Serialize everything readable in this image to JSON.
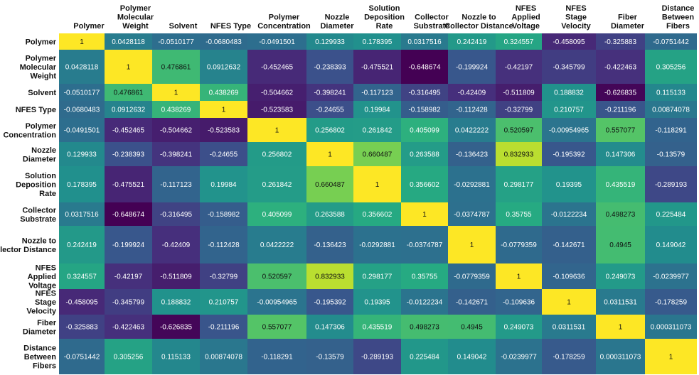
{
  "chart_data": {
    "type": "heatmap",
    "colormap": "viridis",
    "vmin": -0.648674,
    "vmax": 1,
    "labels": [
      "Polymer",
      "Polymer Molecular Weight",
      "Solvent",
      "NFES Type",
      "Polymer Concentration",
      "Nozzle Diameter",
      "Solution Deposition Rate",
      "Collector Substrate",
      "Nozzle to Collector Distance",
      "NFES Applied Voltage",
      "NFES Stage Velocity",
      "Fiber Diameter",
      "Distance Between Fibers"
    ],
    "values": [
      [
        "1",
        "0.0428118",
        "-0.0510177",
        "-0.0680483",
        "-0.0491501",
        "0.129933",
        "0.178395",
        "0.0317516",
        "0.242419",
        "0.324557",
        "-0.458095",
        "-0.325883",
        "-0.0751442"
      ],
      [
        "0.0428118",
        "1",
        "0.476861",
        "0.0912632",
        "-0.452465",
        "-0.238393",
        "-0.475521",
        "-0.648674",
        "-0.199924",
        "-0.42197",
        "-0.345799",
        "-0.422463",
        "0.305256"
      ],
      [
        "-0.0510177",
        "0.476861",
        "1",
        "0.438269",
        "-0.504662",
        "-0.398241",
        "-0.117123",
        "-0.316495",
        "-0.42409",
        "-0.511809",
        "0.188832",
        "-0.626835",
        "0.115133"
      ],
      [
        "-0.0680483",
        "0.0912632",
        "0.438269",
        "1",
        "-0.523583",
        "-0.24655",
        "0.19984",
        "-0.158982",
        "-0.112428",
        "-0.32799",
        "0.210757",
        "-0.211196",
        "0.00874078"
      ],
      [
        "-0.0491501",
        "-0.452465",
        "-0.504662",
        "-0.523583",
        "1",
        "0.256802",
        "0.261842",
        "0.405099",
        "0.0422222",
        "0.520597",
        "-0.00954965",
        "0.557077",
        "-0.118291"
      ],
      [
        "0.129933",
        "-0.238393",
        "-0.398241",
        "-0.24655",
        "0.256802",
        "1",
        "0.660487",
        "0.263588",
        "-0.136423",
        "0.832933",
        "-0.195392",
        "0.147306",
        "-0.13579"
      ],
      [
        "0.178395",
        "-0.475521",
        "-0.117123",
        "0.19984",
        "0.261842",
        "0.660487",
        "1",
        "0.356602",
        "-0.0292881",
        "0.298177",
        "0.19395",
        "0.435519",
        "-0.289193"
      ],
      [
        "0.0317516",
        "-0.648674",
        "-0.316495",
        "-0.158982",
        "0.405099",
        "0.263588",
        "0.356602",
        "1",
        "-0.0374787",
        "0.35755",
        "-0.0122234",
        "0.498273",
        "0.225484"
      ],
      [
        "0.242419",
        "-0.199924",
        "-0.42409",
        "-0.112428",
        "0.0422222",
        "-0.136423",
        "-0.0292881",
        "-0.0374787",
        "1",
        "-0.0779359",
        "-0.142671",
        "0.4945",
        "0.149042"
      ],
      [
        "0.324557",
        "-0.42197",
        "-0.511809",
        "-0.32799",
        "0.520597",
        "0.832933",
        "0.298177",
        "0.35755",
        "-0.0779359",
        "1",
        "-0.109636",
        "0.249073",
        "-0.0239977"
      ],
      [
        "-0.458095",
        "-0.345799",
        "0.188832",
        "0.210757",
        "-0.00954965",
        "-0.195392",
        "0.19395",
        "-0.0122234",
        "-0.142671",
        "-0.109636",
        "1",
        "0.0311531",
        "-0.178259"
      ],
      [
        "-0.325883",
        "-0.422463",
        "-0.626835",
        "-0.211196",
        "0.557077",
        "0.147306",
        "0.435519",
        "0.498273",
        "0.4945",
        "0.249073",
        "0.0311531",
        "1",
        "0.000311073"
      ],
      [
        "-0.0751442",
        "0.305256",
        "0.115133",
        "0.00874078",
        "-0.118291",
        "-0.13579",
        "-0.289193",
        "0.225484",
        "0.149042",
        "-0.0239977",
        "-0.178259",
        "0.000311073",
        "1"
      ]
    ]
  }
}
